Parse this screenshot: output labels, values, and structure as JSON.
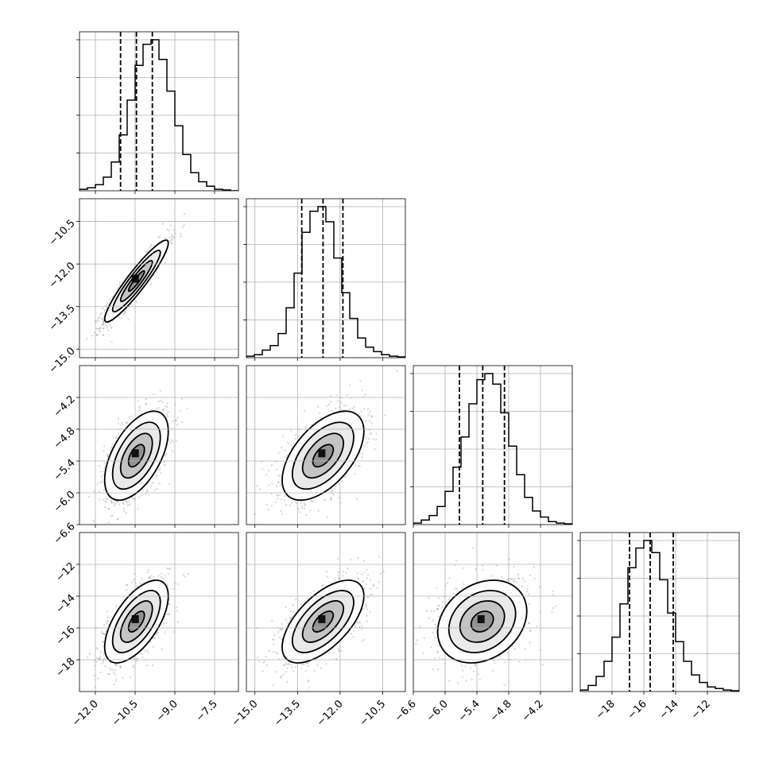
{
  "chart_data": {
    "type": "corner",
    "parameters": [
      {
        "range": [
          -12.6,
          -6.6
        ],
        "ticks": [
          "-12.0",
          "-10.5",
          "-9.0",
          "-7.5"
        ],
        "hist_density": [
          0.01,
          0.02,
          0.04,
          0.09,
          0.19,
          0.37,
          0.6,
          0.83,
          0.97,
          1.0,
          0.87,
          0.66,
          0.43,
          0.24,
          0.12,
          0.06,
          0.03,
          0.01,
          0.005,
          0.0
        ],
        "quantiles": [
          -11.05,
          -10.45,
          -9.85
        ],
        "mean": -10.45,
        "sd": 0.6
      },
      {
        "range": [
          -15.3,
          -9.7
        ],
        "ticks": [
          "-15.0",
          "-13.5",
          "-12.0",
          "-10.5"
        ],
        "hist_density": [
          0.01,
          0.02,
          0.05,
          0.08,
          0.16,
          0.33,
          0.56,
          0.83,
          0.97,
          1.0,
          0.9,
          0.66,
          0.43,
          0.26,
          0.13,
          0.07,
          0.04,
          0.02,
          0.01,
          0.005
        ],
        "quantiles": [
          -13.35,
          -12.6,
          -11.9
        ],
        "mean": -12.6,
        "sd": 0.72
      },
      {
        "range": [
          -6.6,
          -3.6
        ],
        "ticks": [
          "-6.6",
          "-6.0",
          "-5.4",
          "-4.8",
          "-4.2"
        ],
        "hist_density": [
          0.01,
          0.03,
          0.06,
          0.12,
          0.22,
          0.38,
          0.58,
          0.8,
          0.96,
          1.0,
          0.93,
          0.74,
          0.52,
          0.33,
          0.18,
          0.09,
          0.05,
          0.02,
          0.01,
          0.005
        ],
        "quantiles": [
          -5.73,
          -5.29,
          -4.88
        ],
        "mean": -5.3,
        "sd": 0.42
      },
      {
        "range": [
          -20.0,
          -10.0
        ],
        "ticks": [
          "-18",
          "-16",
          "-14",
          "-12"
        ],
        "hist_density": [
          0.01,
          0.04,
          0.1,
          0.2,
          0.36,
          0.58,
          0.82,
          0.95,
          1.0,
          0.92,
          0.74,
          0.52,
          0.33,
          0.2,
          0.11,
          0.06,
          0.03,
          0.02,
          0.01,
          0.005
        ],
        "quantiles": [
          -16.9,
          -15.6,
          -14.15
        ],
        "mean": -15.6,
        "sd": 1.3
      }
    ],
    "correlations": {
      "1-0": 0.93,
      "2-0": 0.55,
      "2-1": 0.55,
      "3-0": 0.62,
      "3-1": 0.62,
      "3-2": 0.25
    },
    "contour_levels_sigma": [
      0.5,
      1.0,
      1.5,
      2.0
    ],
    "grid": true,
    "legend": "none"
  }
}
